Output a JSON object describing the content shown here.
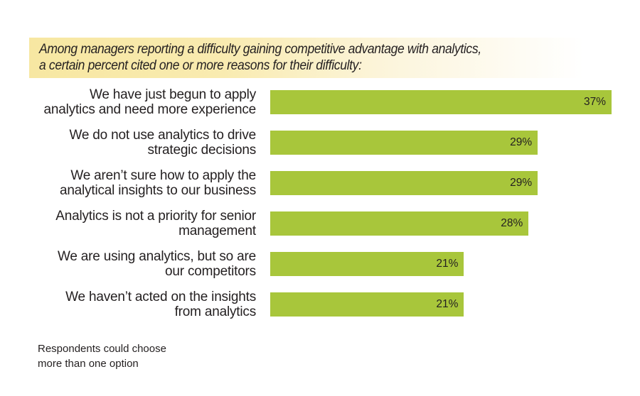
{
  "header": {
    "lines": [
      "Among managers reporting a difficulty gaining competitive advantage with analytics,",
      "a certain percent cited one or more reasons for their difficulty:"
    ]
  },
  "colors": {
    "bar": "#a8c63b",
    "header_band": "#f7e7a2",
    "text": "#231f20"
  },
  "footnote": {
    "lines": [
      "Respondents could choose",
      "more than one option"
    ]
  },
  "chart_data": {
    "type": "bar",
    "orientation": "horizontal",
    "title": "Among managers reporting a difficulty gaining competitive advantage with analytics, a certain percent cited one or more reasons for their difficulty:",
    "xlabel": "",
    "ylabel": "",
    "xlim": [
      0,
      37
    ],
    "grid": false,
    "categories": [
      [
        "We have just begun to apply",
        "analytics and need more experience"
      ],
      [
        "We do not use analytics to drive",
        "strategic decisions"
      ],
      [
        "We aren’t sure how to apply the",
        "analytical insights to our business"
      ],
      [
        "Analytics is not a priority for senior",
        "management"
      ],
      [
        "We are using analytics, but so are",
        "our competitors"
      ],
      [
        "We haven’t acted on the insights",
        "from analytics"
      ]
    ],
    "values": [
      37,
      29,
      29,
      28,
      21,
      21
    ],
    "value_labels": [
      "37%",
      "29%",
      "29%",
      "28%",
      "21%",
      "21%"
    ],
    "unit": "%",
    "note": "Respondents could choose more than one option"
  }
}
